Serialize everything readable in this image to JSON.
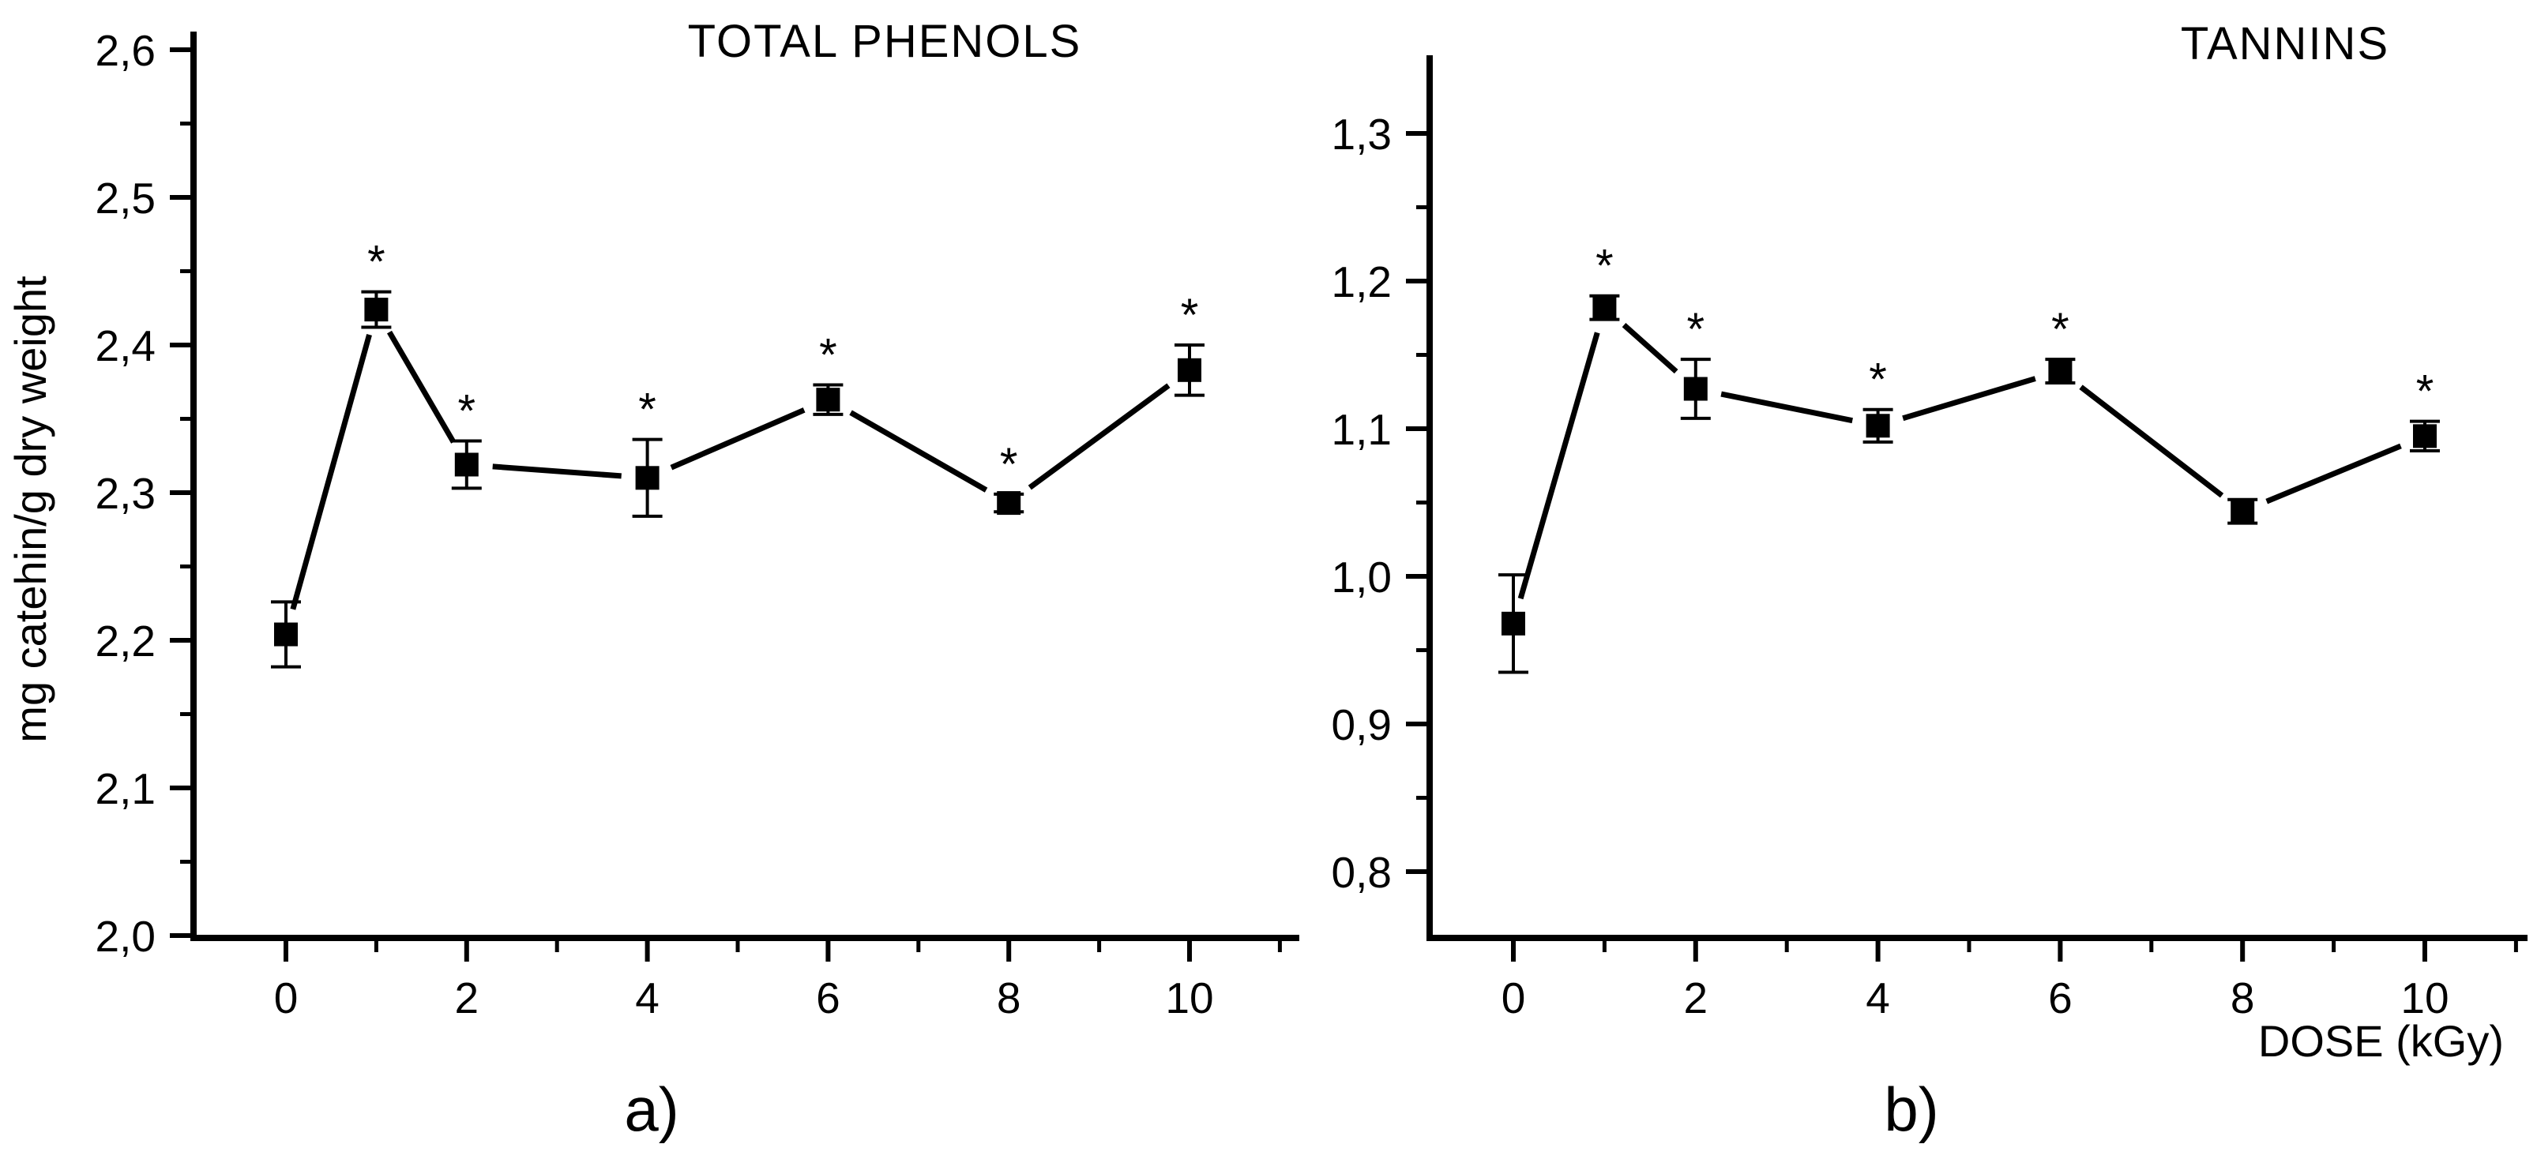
{
  "figure": {
    "background_color": "#ffffff",
    "ink_color": "#000000",
    "dose_axis_label": "DOSE (kGy)",
    "decimal_separator": ","
  },
  "chart_data": [
    {
      "type": "line",
      "title": "TOTAL PHENOLS",
      "panel_label": "a)",
      "xlabel": "DOSE (kGy)",
      "ylabel": "mg catehin/g dry weight",
      "marker": "filled-square",
      "error_bars": true,
      "grid": false,
      "legend": null,
      "x": [
        0,
        1,
        2,
        4,
        6,
        8,
        10
      ],
      "y": [
        2.204,
        2.424,
        2.319,
        2.31,
        2.363,
        2.293,
        2.383
      ],
      "y_err": [
        0.022,
        0.012,
        0.016,
        0.026,
        0.01,
        0.006,
        0.017
      ],
      "significant": [
        false,
        true,
        true,
        true,
        true,
        true,
        true
      ],
      "significance_symbol": "*",
      "ylim": [
        2.0,
        2.6
      ],
      "xlim": [
        -1,
        11
      ],
      "y_tick_values": [
        2.0,
        2.1,
        2.2,
        2.3,
        2.4,
        2.5,
        2.6
      ],
      "y_tick_labels": [
        "2,0",
        "2,1",
        "2,2",
        "2,3",
        "2,4",
        "2,5",
        "2,6"
      ],
      "y_minor_ticks": [
        2.05,
        2.15,
        2.25,
        2.35,
        2.45,
        2.55
      ],
      "x_tick_values": [
        0,
        2,
        4,
        6,
        8,
        10
      ],
      "x_tick_labels": [
        "0",
        "2",
        "4",
        "6",
        "8",
        "10"
      ],
      "x_minor_ticks": [
        1,
        3,
        5,
        7,
        9,
        11
      ]
    },
    {
      "type": "line",
      "title": "TANNINS",
      "panel_label": "b)",
      "xlabel": "DOSE (kGy)",
      "ylabel": "",
      "marker": "filled-square",
      "error_bars": true,
      "grid": false,
      "legend": null,
      "x": [
        0,
        1,
        2,
        4,
        6,
        8,
        10
      ],
      "y": [
        0.968,
        1.182,
        1.127,
        1.102,
        1.139,
        1.044,
        1.095
      ],
      "y_err": [
        0.033,
        0.008,
        0.02,
        0.011,
        0.008,
        0.008,
        0.01
      ],
      "significant": [
        false,
        true,
        true,
        true,
        true,
        false,
        true
      ],
      "significance_symbol": "*",
      "ylim": [
        0.755,
        1.353
      ],
      "xlim": [
        -1,
        11
      ],
      "y_tick_values": [
        0.8,
        0.9,
        1.0,
        1.1,
        1.2,
        1.3
      ],
      "y_tick_labels": [
        "0,8",
        "0,9",
        "1,0",
        "1,1",
        "1,2",
        "1,3"
      ],
      "y_minor_ticks": [
        0.85,
        0.95,
        1.05,
        1.15,
        1.25
      ],
      "x_tick_values": [
        0,
        2,
        4,
        6,
        8,
        10
      ],
      "x_tick_labels": [
        "0",
        "2",
        "4",
        "6",
        "8",
        "10"
      ],
      "x_minor_ticks": [
        1,
        3,
        5,
        7,
        9,
        11
      ]
    }
  ]
}
